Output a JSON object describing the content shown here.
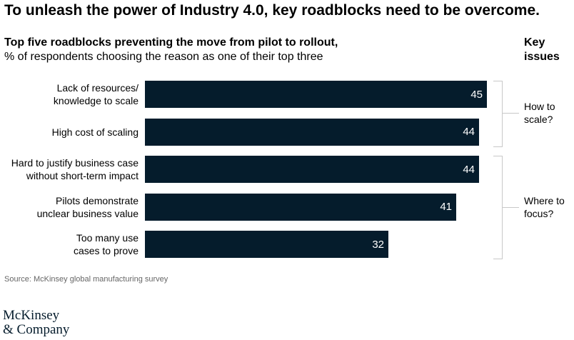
{
  "headline": "To unleash the power of Industry 4.0, key roadblocks need to be overcome.",
  "key_issues_header": "Key issues",
  "source": "Source: McKinsey global manufacturing survey",
  "logo": {
    "line1": "McKinsey",
    "line2": "& Company"
  },
  "colors": {
    "bar": "#051c2c",
    "bracket": "#c8c8c8"
  },
  "chart_data": {
    "type": "bar",
    "orientation": "horizontal",
    "title": "Top five roadblocks preventing the move from pilot to rollout,",
    "subtitle": "% of respondents choosing the reason as one of their top three",
    "categories": [
      "Lack of resources/ knowledge to scale",
      "High cost of scaling",
      "Hard to justify business case without short-term impact",
      "Pilots demonstrate unclear business value",
      "Too many use cases to prove"
    ],
    "category_lines": [
      [
        "Lack of resources/",
        "knowledge to scale"
      ],
      [
        "High cost of scaling"
      ],
      [
        "Hard to justify business case",
        "without short-term impact"
      ],
      [
        "Pilots demonstrate",
        "unclear business value"
      ],
      [
        "Too many use",
        "cases to prove"
      ]
    ],
    "values": [
      45,
      44,
      44,
      41,
      32
    ],
    "value_labels": [
      "45",
      "44",
      "44",
      "41",
      "32"
    ],
    "groups": [
      {
        "label": "How to scale?",
        "label_lines": [
          "How to",
          "scale?"
        ],
        "categories": [
          0,
          1
        ]
      },
      {
        "label": "Where to focus?",
        "label_lines": [
          "Where to",
          "focus?"
        ],
        "categories": [
          2,
          3,
          4
        ]
      }
    ],
    "grid": false,
    "legend": "none"
  }
}
